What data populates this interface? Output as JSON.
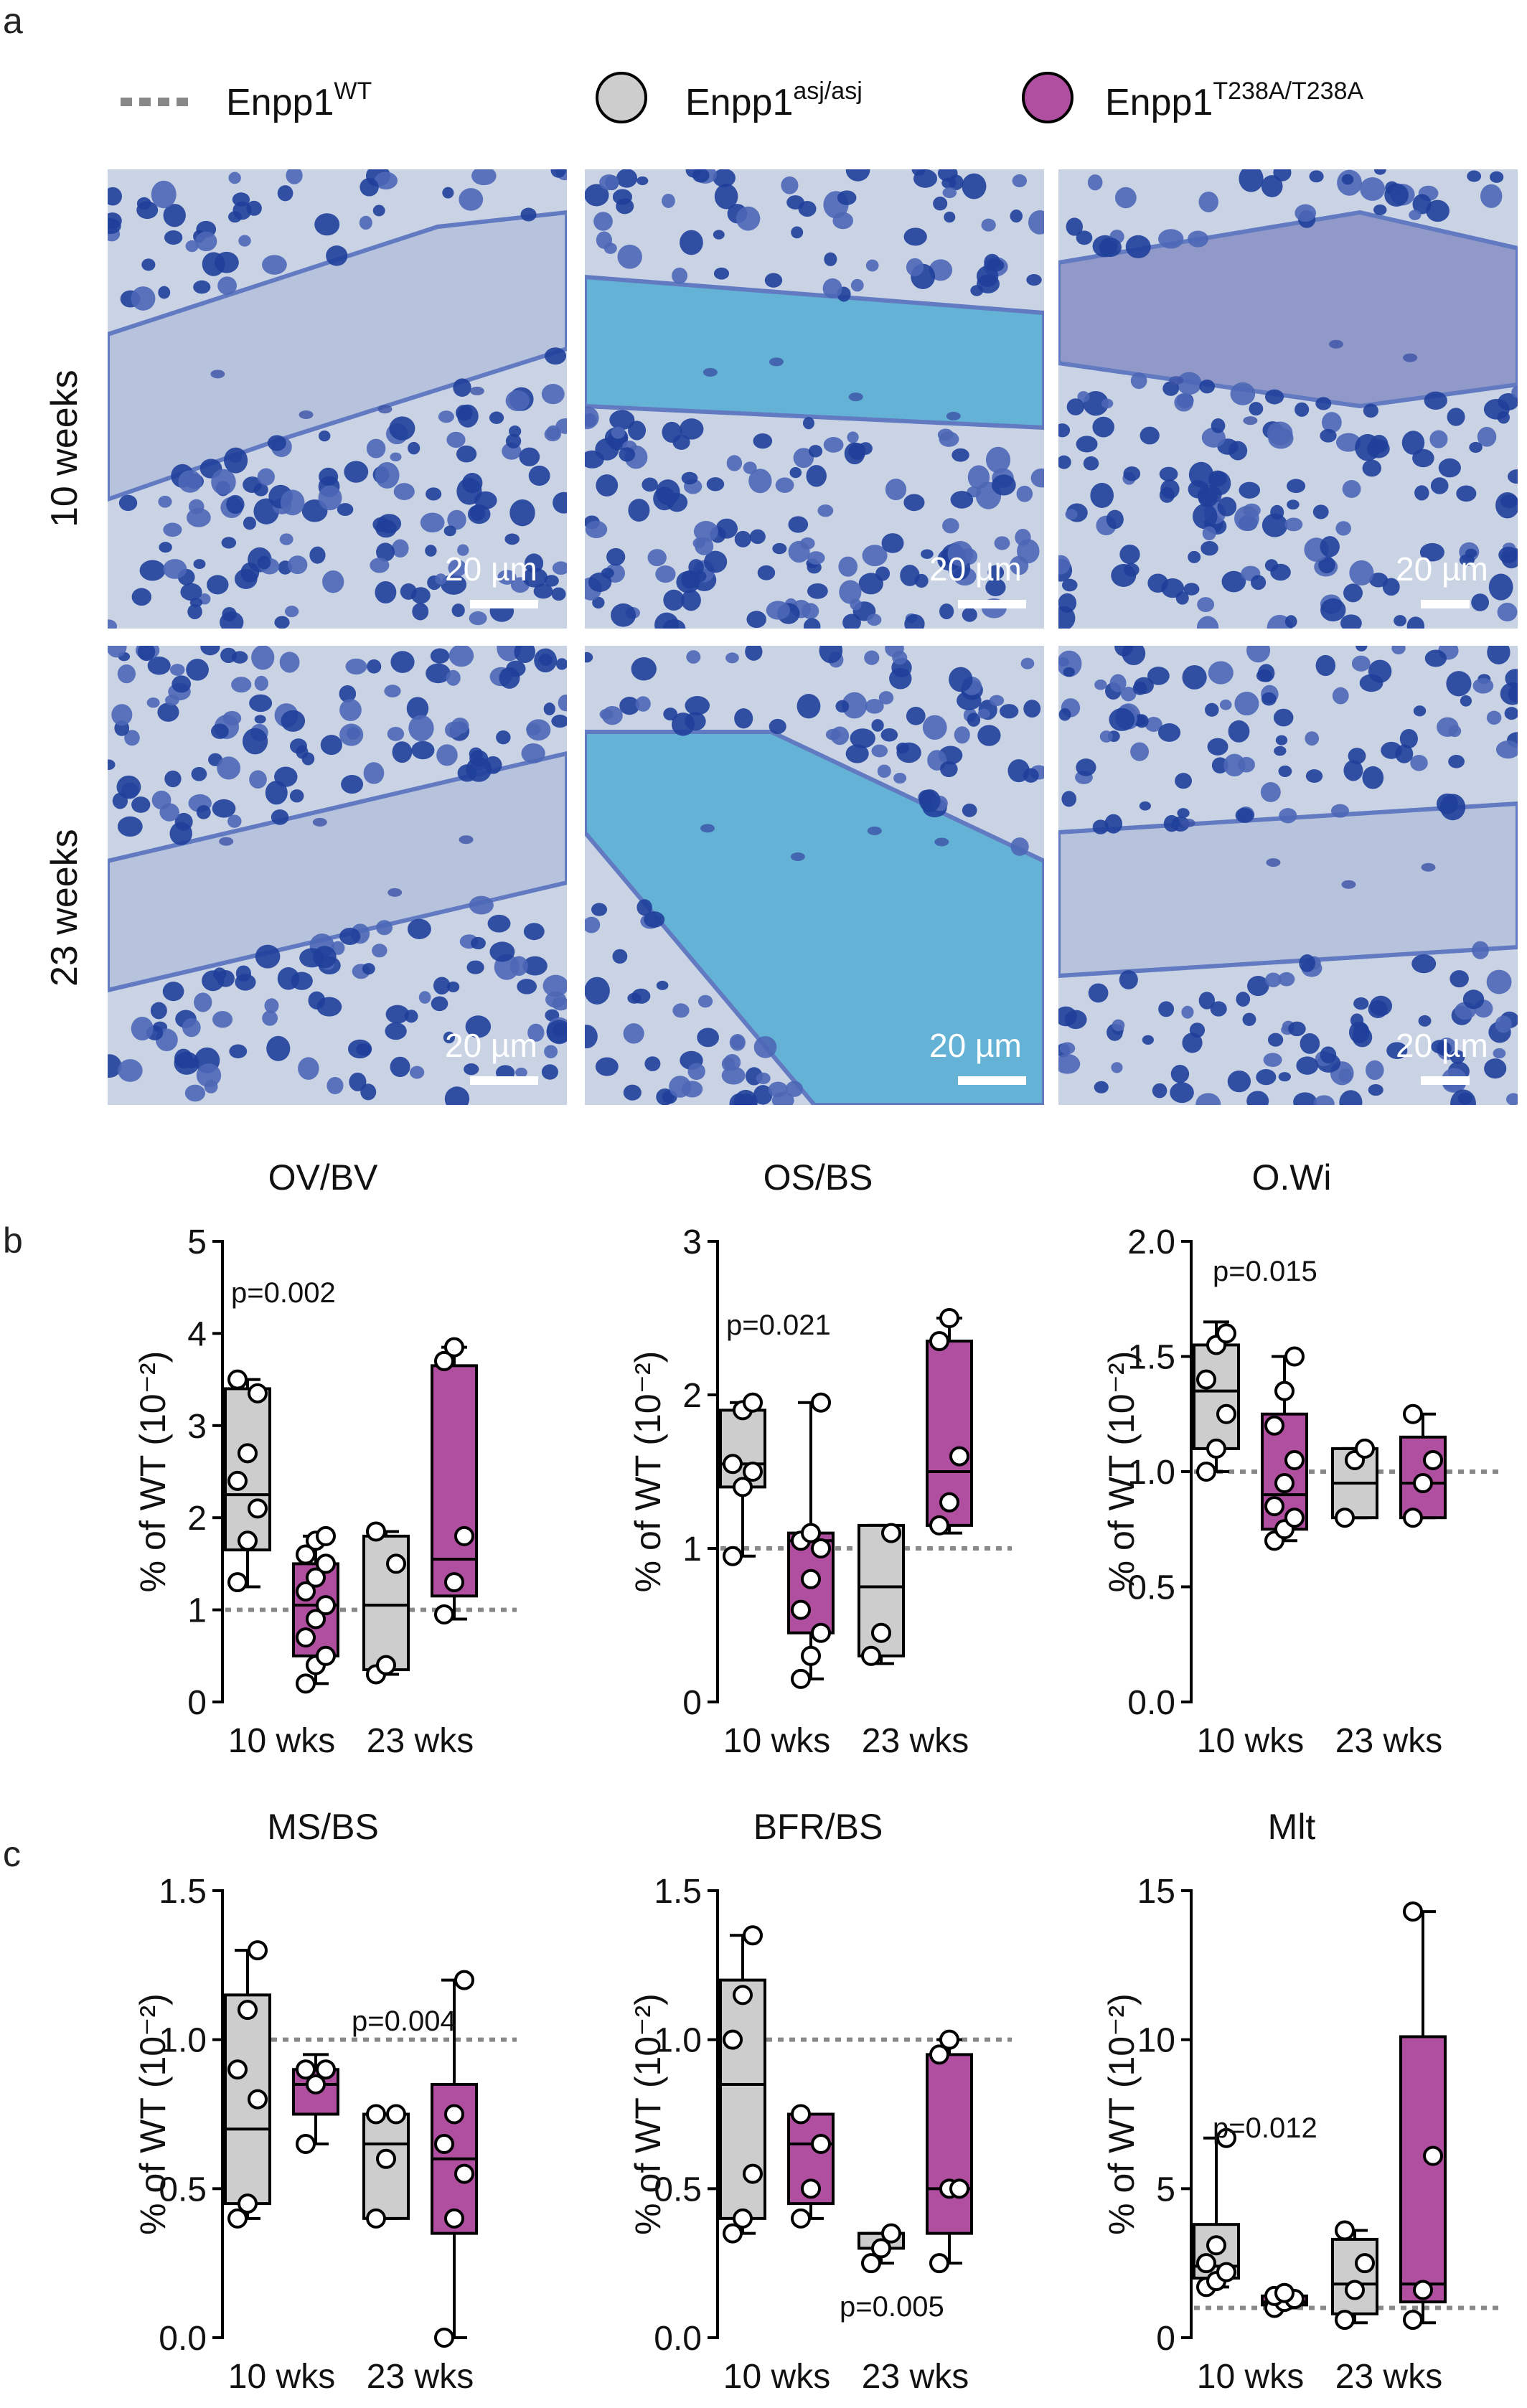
{
  "panels": {
    "a": "a",
    "b": "b",
    "c": "c"
  },
  "legend": {
    "wt": {
      "base": "Enpp1",
      "sup": "WT",
      "color": "#888888"
    },
    "asj": {
      "base": "Enpp1",
      "sup": "asj/asj",
      "color": "#cdcdcd"
    },
    "t238": {
      "base": "Enpp1",
      "sup": "T238A/T238A",
      "color": "#b04fa0"
    }
  },
  "rows": [
    "10 weeks",
    "23 weeks"
  ],
  "scale_label": "20 µm",
  "stain_colors": {
    "background": "#c9d3e4",
    "bone_light": "#b7c3dc",
    "bone_cyan": "#5fb2d6",
    "bone_purple": "#8e96c6",
    "cell": "#1f3f9a",
    "cell_light": "#4d67b6"
  },
  "chart_data": [
    {
      "type": "box",
      "title": "OV/BV",
      "ylabel": "% of WT (10⁻²)",
      "ylim": [
        0,
        5
      ],
      "yticks": [
        "0",
        "1",
        "2",
        "3",
        "4",
        "5"
      ],
      "categories": [
        "10 wks",
        "23 wks"
      ],
      "reference_line": 1,
      "pvalue": {
        "text": "p=0.002"
      },
      "series": [
        {
          "group": "asj",
          "category": "10 wks",
          "min": 1.25,
          "q1": 1.65,
          "median": 2.25,
          "q3": 3.4,
          "max": 3.5,
          "points": [
            1.3,
            1.75,
            2.1,
            2.4,
            2.7,
            3.35,
            3.5
          ]
        },
        {
          "group": "t238",
          "category": "10 wks",
          "min": 0.2,
          "q1": 0.5,
          "median": 1.05,
          "q3": 1.5,
          "max": 1.8,
          "points": [
            0.2,
            0.4,
            0.5,
            0.7,
            0.9,
            1.05,
            1.2,
            1.35,
            1.5,
            1.6,
            1.75,
            1.8
          ]
        },
        {
          "group": "asj",
          "category": "23 wks",
          "min": 0.3,
          "q1": 0.35,
          "median": 1.05,
          "q3": 1.8,
          "max": 1.85,
          "points": [
            0.3,
            0.4,
            1.5,
            1.85
          ]
        },
        {
          "group": "t238",
          "category": "23 wks",
          "min": 0.9,
          "q1": 1.15,
          "median": 1.55,
          "q3": 3.65,
          "max": 3.85,
          "points": [
            0.95,
            1.3,
            1.8,
            3.7,
            3.85
          ]
        }
      ]
    },
    {
      "type": "box",
      "title": "OS/BS",
      "ylabel": "% of WT (10⁻²)",
      "ylim": [
        0,
        3
      ],
      "yticks": [
        "0",
        "1",
        "2",
        "3"
      ],
      "categories": [
        "10 wks",
        "23 wks"
      ],
      "reference_line": 1,
      "pvalue": {
        "text": "p=0.021"
      },
      "series": [
        {
          "group": "asj",
          "category": "10 wks",
          "min": 0.95,
          "q1": 1.4,
          "median": 1.55,
          "q3": 1.9,
          "max": 1.95,
          "points": [
            0.95,
            1.4,
            1.5,
            1.55,
            1.9,
            1.95
          ]
        },
        {
          "group": "t238",
          "category": "10 wks",
          "min": 0.15,
          "q1": 0.45,
          "median": 1.05,
          "q3": 1.1,
          "max": 1.95,
          "points": [
            0.15,
            0.3,
            0.45,
            0.6,
            0.8,
            1.0,
            1.05,
            1.1,
            1.95
          ]
        },
        {
          "group": "asj",
          "category": "23 wks",
          "min": 0.25,
          "q1": 0.3,
          "median": 0.75,
          "q3": 1.15,
          "max": 1.15,
          "points": [
            0.3,
            0.45,
            1.1
          ]
        },
        {
          "group": "t238",
          "category": "23 wks",
          "min": 1.1,
          "q1": 1.15,
          "median": 1.5,
          "q3": 2.35,
          "max": 2.5,
          "points": [
            1.15,
            1.3,
            1.6,
            2.35,
            2.5
          ]
        }
      ]
    },
    {
      "type": "box",
      "title": "O.Wi",
      "ylabel": "% of WT (10⁻²)",
      "ylim": [
        0,
        2
      ],
      "yticks": [
        "0.0",
        "0.5",
        "1.0",
        "1.5",
        "2.0"
      ],
      "categories": [
        "10 wks",
        "23 wks"
      ],
      "reference_line": 1,
      "pvalue": {
        "text": "p=0.015"
      },
      "series": [
        {
          "group": "asj",
          "category": "10 wks",
          "min": 1.0,
          "q1": 1.1,
          "median": 1.35,
          "q3": 1.55,
          "max": 1.65,
          "points": [
            1.0,
            1.1,
            1.25,
            1.4,
            1.55,
            1.6
          ]
        },
        {
          "group": "t238",
          "category": "10 wks",
          "min": 0.7,
          "q1": 0.75,
          "median": 0.9,
          "q3": 1.25,
          "max": 1.5,
          "points": [
            0.7,
            0.75,
            0.8,
            0.85,
            0.95,
            1.05,
            1.2,
            1.35,
            1.5
          ]
        },
        {
          "group": "asj",
          "category": "23 wks",
          "min": 0.8,
          "q1": 0.8,
          "median": 0.95,
          "q3": 1.1,
          "max": 1.1,
          "points": [
            0.8,
            1.05,
            1.1
          ]
        },
        {
          "group": "t238",
          "category": "23 wks",
          "min": 0.8,
          "q1": 0.8,
          "median": 0.95,
          "q3": 1.15,
          "max": 1.25,
          "points": [
            0.8,
            0.95,
            1.05,
            1.25
          ]
        }
      ]
    },
    {
      "type": "box",
      "title": "MS/BS",
      "ylabel": "% of WT (10⁻²)",
      "ylim": [
        0,
        1.5
      ],
      "yticks": [
        "0.0",
        "0.5",
        "1.0",
        "1.5"
      ],
      "categories": [
        "10 wks",
        "23 wks"
      ],
      "reference_line": 1,
      "pvalue": {
        "text": "p=0.004"
      },
      "series": [
        {
          "group": "asj",
          "category": "10 wks",
          "min": 0.4,
          "q1": 0.45,
          "median": 0.7,
          "q3": 1.15,
          "max": 1.3,
          "points": [
            0.4,
            0.45,
            0.8,
            0.9,
            1.1,
            1.3
          ]
        },
        {
          "group": "t238",
          "category": "10 wks",
          "min": 0.65,
          "q1": 0.75,
          "median": 0.85,
          "q3": 0.9,
          "max": 0.95,
          "points": [
            0.65,
            0.85,
            0.9,
            0.9
          ]
        },
        {
          "group": "asj",
          "category": "23 wks",
          "min": 0.4,
          "q1": 0.4,
          "median": 0.65,
          "q3": 0.75,
          "max": 0.75,
          "points": [
            0.4,
            0.6,
            0.75,
            0.75
          ]
        },
        {
          "group": "t238",
          "category": "23 wks",
          "min": 0.0,
          "q1": 0.35,
          "median": 0.6,
          "q3": 0.85,
          "max": 1.2,
          "points": [
            0.0,
            0.4,
            0.55,
            0.65,
            0.75,
            1.2
          ]
        }
      ]
    },
    {
      "type": "box",
      "title": "BFR/BS",
      "ylabel": "% of WT (10⁻²)",
      "ylim": [
        0,
        1.5
      ],
      "yticks": [
        "0.0",
        "0.5",
        "1.0",
        "1.5"
      ],
      "categories": [
        "10 wks",
        "23 wks"
      ],
      "reference_line": 1,
      "pvalue": {
        "text": "p=0.005"
      },
      "series": [
        {
          "group": "asj",
          "category": "10 wks",
          "min": 0.35,
          "q1": 0.4,
          "median": 0.85,
          "q3": 1.2,
          "max": 1.35,
          "points": [
            0.35,
            0.4,
            0.55,
            1.0,
            1.15,
            1.35
          ]
        },
        {
          "group": "t238",
          "category": "10 wks",
          "min": 0.4,
          "q1": 0.45,
          "median": 0.65,
          "q3": 0.75,
          "max": 0.75,
          "points": [
            0.4,
            0.5,
            0.65,
            0.75
          ]
        },
        {
          "group": "asj",
          "category": "23 wks",
          "min": 0.25,
          "q1": 0.3,
          "median": 0.35,
          "q3": 0.35,
          "max": 0.35,
          "points": [
            0.25,
            0.3,
            0.35
          ]
        },
        {
          "group": "t238",
          "category": "23 wks",
          "min": 0.25,
          "q1": 0.35,
          "median": 0.5,
          "q3": 0.95,
          "max": 1.0,
          "points": [
            0.25,
            0.5,
            0.5,
            0.95,
            1.0
          ]
        }
      ]
    },
    {
      "type": "box",
      "title": "Mlt",
      "ylabel": "% of WT (10⁻²)",
      "ylim": [
        0,
        15
      ],
      "yticks": [
        "0",
        "5",
        "10",
        "15"
      ],
      "categories": [
        "10 wks",
        "23 wks"
      ],
      "reference_line": 1,
      "pvalue": {
        "text": "p=0.012"
      },
      "series": [
        {
          "group": "asj",
          "category": "10 wks",
          "min": 1.7,
          "q1": 2.0,
          "median": 2.4,
          "q3": 3.8,
          "max": 6.7,
          "points": [
            1.7,
            1.9,
            2.2,
            2.5,
            3.1,
            6.7
          ]
        },
        {
          "group": "t238",
          "category": "10 wks",
          "min": 1.0,
          "q1": 1.1,
          "median": 1.2,
          "q3": 1.4,
          "max": 1.5,
          "points": [
            1.0,
            1.2,
            1.3,
            1.4,
            1.5
          ]
        },
        {
          "group": "asj",
          "category": "23 wks",
          "min": 0.5,
          "q1": 0.8,
          "median": 1.8,
          "q3": 3.3,
          "max": 3.6,
          "points": [
            0.6,
            1.6,
            2.5,
            3.6
          ]
        },
        {
          "group": "t238",
          "category": "23 wks",
          "min": 0.5,
          "q1": 1.2,
          "median": 1.8,
          "q3": 10.1,
          "max": 14.3,
          "points": [
            0.6,
            1.6,
            6.1,
            14.3
          ]
        }
      ]
    }
  ]
}
